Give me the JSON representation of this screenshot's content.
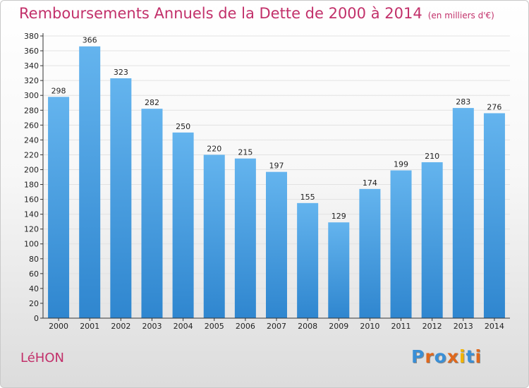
{
  "title": "Remboursements Annuels de la Dette de 2000 à 2014",
  "unit_label": "(en milliers d'€)",
  "commune": "LéHON",
  "logo": {
    "text": "Proxiti",
    "letter_colors": [
      "#3a8fd6",
      "#e0681c",
      "#3a8fd6",
      "#e0681c",
      "#f2b400",
      "#3a8fd6",
      "#e0681c"
    ]
  },
  "colors": {
    "title": "#c2306a",
    "bar_top": "#64b4ee",
    "bar_bottom": "#2f86cf",
    "grid": "#e2e2e2",
    "axis": "#333333"
  },
  "chart_data": {
    "type": "bar",
    "title": "Remboursements Annuels de la Dette de 2000 à 2014",
    "xlabel": "",
    "ylabel": "",
    "categories": [
      "2000",
      "2001",
      "2002",
      "2003",
      "2004",
      "2005",
      "2006",
      "2007",
      "2008",
      "2009",
      "2010",
      "2011",
      "2012",
      "2013",
      "2014"
    ],
    "values": [
      298,
      366,
      323,
      282,
      250,
      220,
      215,
      197,
      155,
      129,
      174,
      199,
      210,
      283,
      276
    ],
    "ylim": [
      0,
      380
    ],
    "yticks": [
      0,
      20,
      40,
      60,
      80,
      100,
      120,
      140,
      160,
      180,
      200,
      220,
      240,
      260,
      280,
      300,
      320,
      340,
      360,
      380
    ],
    "grid": true,
    "legend": "none",
    "data_labels": true
  }
}
